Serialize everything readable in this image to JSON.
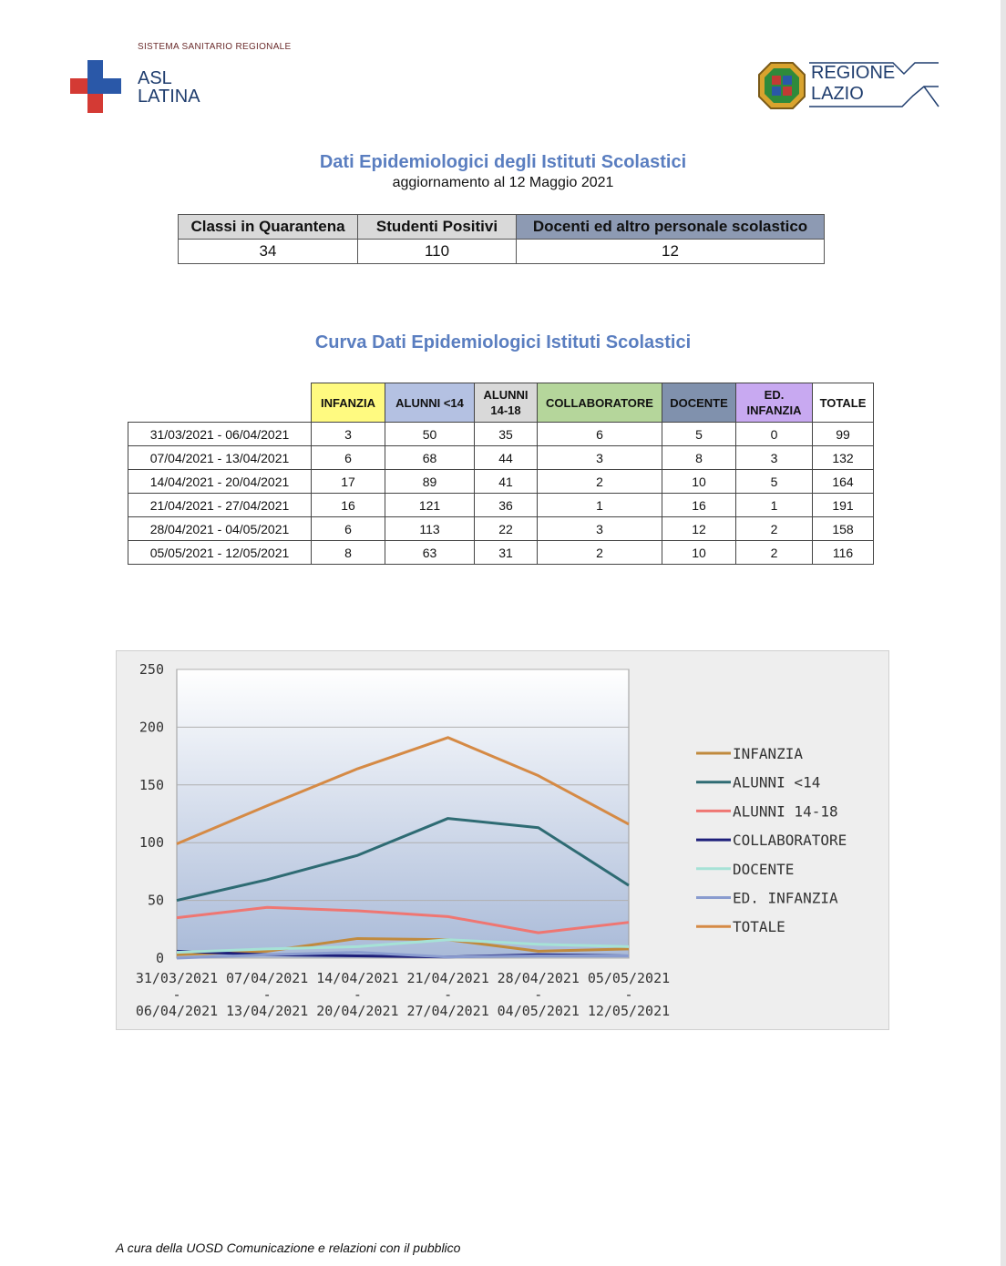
{
  "header": {
    "asl_system": "SISTEMA SANITARIO REGIONALE",
    "asl_name_line1": "ASL",
    "asl_name_line2": "LATINA",
    "lazio_line1": "REGIONE",
    "lazio_line2": "LAZIO"
  },
  "title": "Dati Epidemiologici degli Istituti Scolastici",
  "subtitle": "aggiornamento al 12 Maggio 2021",
  "summary": {
    "headers": [
      "Classi in Quarantena",
      "Studenti Positivi",
      "Docenti ed altro personale scolastico"
    ],
    "values": [
      "34",
      "110",
      "12"
    ]
  },
  "curve_title": "Curva Dati Epidemiologici Istituti Scolastici",
  "weekly_table": {
    "headers": [
      "INFANZIA",
      "ALUNNI <14",
      "ALUNNI 14-18",
      "COLLABORATORE",
      "DOCENTE",
      "ED. INFANZIA",
      "TOTALE"
    ],
    "header_lines": {
      "alunni1418_a": "ALUNNI",
      "alunni1418_b": "14-18",
      "edinf_a": "ED.",
      "edinf_b": "INFANZIA"
    },
    "rows": [
      {
        "range": "31/03/2021 - 06/04/2021",
        "vals": [
          "3",
          "50",
          "35",
          "6",
          "5",
          "0",
          "99"
        ]
      },
      {
        "range": "07/04/2021 - 13/04/2021",
        "vals": [
          "6",
          "68",
          "44",
          "3",
          "8",
          "3",
          "132"
        ]
      },
      {
        "range": "14/04/2021 - 20/04/2021",
        "vals": [
          "17",
          "89",
          "41",
          "2",
          "10",
          "5",
          "164"
        ]
      },
      {
        "range": "21/04/2021 - 27/04/2021",
        "vals": [
          "16",
          "121",
          "36",
          "1",
          "16",
          "1",
          "191"
        ]
      },
      {
        "range": "28/04/2021 - 04/05/2021",
        "vals": [
          "6",
          "113",
          "22",
          "3",
          "12",
          "2",
          "158"
        ]
      },
      {
        "range": "05/05/2021 - 12/05/2021",
        "vals": [
          "8",
          "63",
          "31",
          "2",
          "10",
          "2",
          "116"
        ]
      }
    ]
  },
  "chart_data": {
    "type": "line",
    "categories": [
      [
        "31/03/2021",
        "-",
        "06/04/2021"
      ],
      [
        "07/04/2021",
        "-",
        "13/04/2021"
      ],
      [
        "14/04/2021",
        "-",
        "20/04/2021"
      ],
      [
        "21/04/2021",
        "-",
        "27/04/2021"
      ],
      [
        "28/04/2021",
        "-",
        "04/05/2021"
      ],
      [
        "05/05/2021",
        "-",
        "12/05/2021"
      ]
    ],
    "ylim": [
      0,
      250
    ],
    "yticks": [
      "0",
      "50",
      "100",
      "150",
      "200",
      "250"
    ],
    "grid": true,
    "legend_position": "right",
    "series": [
      {
        "name": "INFANZIA",
        "color": "#c08a3e",
        "values": [
          3,
          6,
          17,
          16,
          6,
          8
        ]
      },
      {
        "name": "ALUNNI <14",
        "color": "#2e6b73",
        "values": [
          50,
          68,
          89,
          121,
          113,
          63
        ]
      },
      {
        "name": "ALUNNI 14-18",
        "color": "#ef7672",
        "values": [
          35,
          44,
          41,
          36,
          22,
          31
        ]
      },
      {
        "name": "COLLABORATORE",
        "color": "#1d1f7a",
        "values": [
          6,
          3,
          2,
          1,
          3,
          2
        ]
      },
      {
        "name": "DOCENTE",
        "color": "#a6e2d6",
        "values": [
          5,
          8,
          10,
          16,
          12,
          10
        ]
      },
      {
        "name": "ED. INFANZIA",
        "color": "#8a9ccf",
        "values": [
          0,
          3,
          5,
          1,
          2,
          2
        ]
      },
      {
        "name": "TOTALE",
        "color": "#d58a45",
        "values": [
          99,
          132,
          164,
          191,
          158,
          116
        ]
      }
    ]
  },
  "footer": "A cura della UOSD Comunicazione e relazioni con il pubblico"
}
